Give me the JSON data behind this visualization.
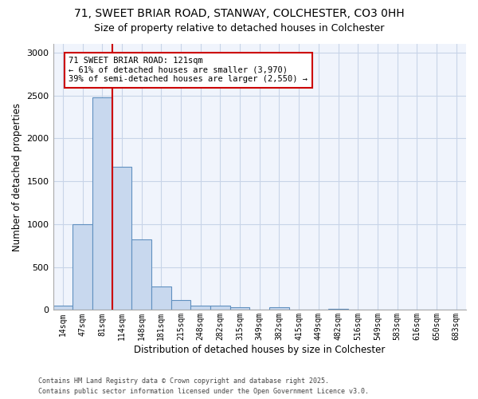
{
  "title_line1": "71, SWEET BRIAR ROAD, STANWAY, COLCHESTER, CO3 0HH",
  "title_line2": "Size of property relative to detached houses in Colchester",
  "xlabel": "Distribution of detached houses by size in Colchester",
  "ylabel": "Number of detached properties",
  "bar_labels": [
    "14sqm",
    "47sqm",
    "81sqm",
    "114sqm",
    "148sqm",
    "181sqm",
    "215sqm",
    "248sqm",
    "282sqm",
    "315sqm",
    "349sqm",
    "382sqm",
    "415sqm",
    "449sqm",
    "482sqm",
    "516sqm",
    "549sqm",
    "583sqm",
    "616sqm",
    "650sqm",
    "683sqm"
  ],
  "bar_values": [
    50,
    1000,
    2480,
    1670,
    820,
    270,
    120,
    55,
    55,
    35,
    0,
    30,
    0,
    0,
    15,
    0,
    0,
    0,
    0,
    0,
    0
  ],
  "bar_color": "#c8d8ee",
  "bar_edgecolor": "#6090c0",
  "vline_x_index": 2.5,
  "vline_color": "#cc0000",
  "annotation_title": "71 SWEET BRIAR ROAD: 121sqm",
  "annotation_line2": "← 61% of detached houses are smaller (3,970)",
  "annotation_line3": "39% of semi-detached houses are larger (2,550) →",
  "annotation_box_color": "#cc0000",
  "ylim": [
    0,
    3100
  ],
  "grid_color": "#c8d4e8",
  "bg_color": "#ffffff",
  "plot_bg_color": "#f0f4fc",
  "footnote1": "Contains HM Land Registry data © Crown copyright and database right 2025.",
  "footnote2": "Contains public sector information licensed under the Open Government Licence v3.0.",
  "yticks": [
    0,
    500,
    1000,
    1500,
    2000,
    2500,
    3000
  ]
}
